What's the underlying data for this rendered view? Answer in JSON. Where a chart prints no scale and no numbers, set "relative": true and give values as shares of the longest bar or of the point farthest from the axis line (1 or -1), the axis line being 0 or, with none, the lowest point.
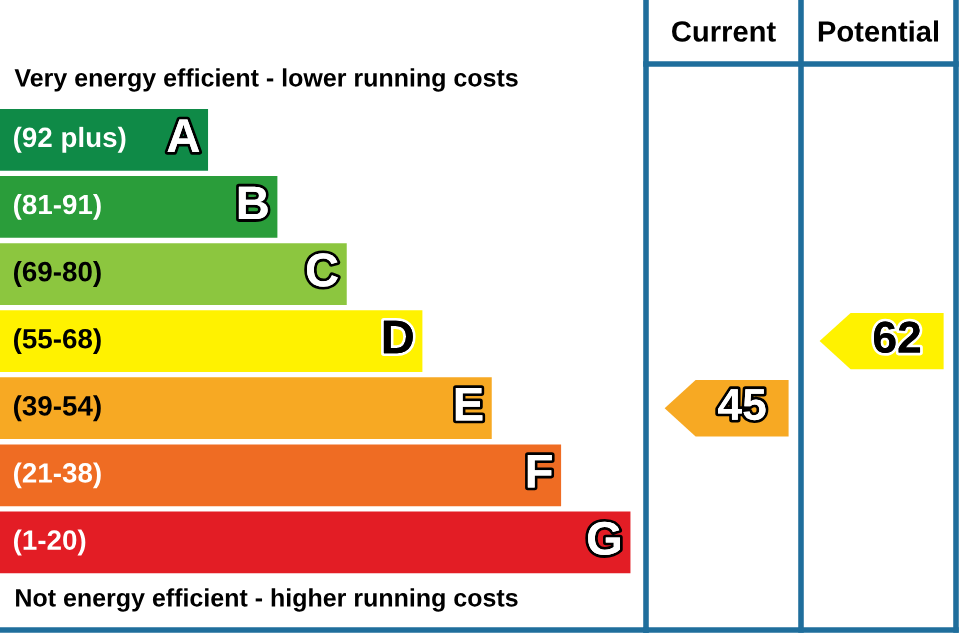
{
  "chart_data": {
    "type": "bar",
    "orientation": "horizontal",
    "relative": true,
    "categories": [
      "A",
      "B",
      "C",
      "D",
      "E",
      "F",
      "G"
    ],
    "values": [
      0.33,
      0.44,
      0.55,
      0.67,
      0.78,
      0.89,
      1.0
    ],
    "colors": [
      "#0f8a47",
      "#2a9d3a",
      "#8cc63f",
      "#fff200",
      "#f7a923",
      "#ef6c23",
      "#e31d25"
    ],
    "annotations": [
      "Very energy efficient - lower running costs",
      "Not energy efficient - higher running costs",
      "Current",
      "Potential",
      "(92 plus)",
      "(81-91)",
      "(69-80)",
      "(55-68)",
      "(39-54)",
      "(21-38)",
      "(1-20)",
      "45",
      "62"
    ]
  }
}
